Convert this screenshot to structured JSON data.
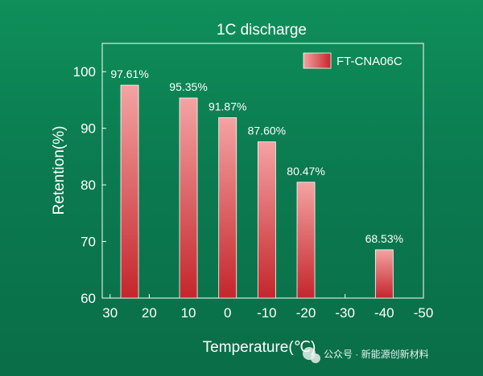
{
  "chart_data": {
    "type": "bar",
    "title": "1C discharge",
    "xlabel": "Temperature(℃)",
    "ylabel": "Retention(%)",
    "xlim": [
      32,
      -50
    ],
    "ylim": [
      60,
      105
    ],
    "x_ticks": [
      "30",
      "20",
      "10",
      "0",
      "-10",
      "-20",
      "-30",
      "-40",
      "-50"
    ],
    "y_ticks": [
      "60",
      "70",
      "80",
      "90",
      "100"
    ],
    "legend_position": "top-right",
    "grid": false,
    "series": [
      {
        "name": "FT-CNA06C",
        "x": [
          25,
          10,
          0,
          -10,
          -20,
          -40
        ],
        "values": [
          97.61,
          95.35,
          91.87,
          87.6,
          80.47,
          68.53
        ],
        "labels": [
          "97.61%",
          "95.35%",
          "91.87%",
          "87.60%",
          "80.47%",
          "68.53%"
        ]
      }
    ],
    "colors": {
      "bar_light": "#f4a3a3",
      "bar_dark": "#c4262c",
      "bar_edge": "#ffffff",
      "axis": "#ffffff",
      "text": "#ffffff"
    }
  },
  "watermark": "公众号 · 新能源创新材料"
}
